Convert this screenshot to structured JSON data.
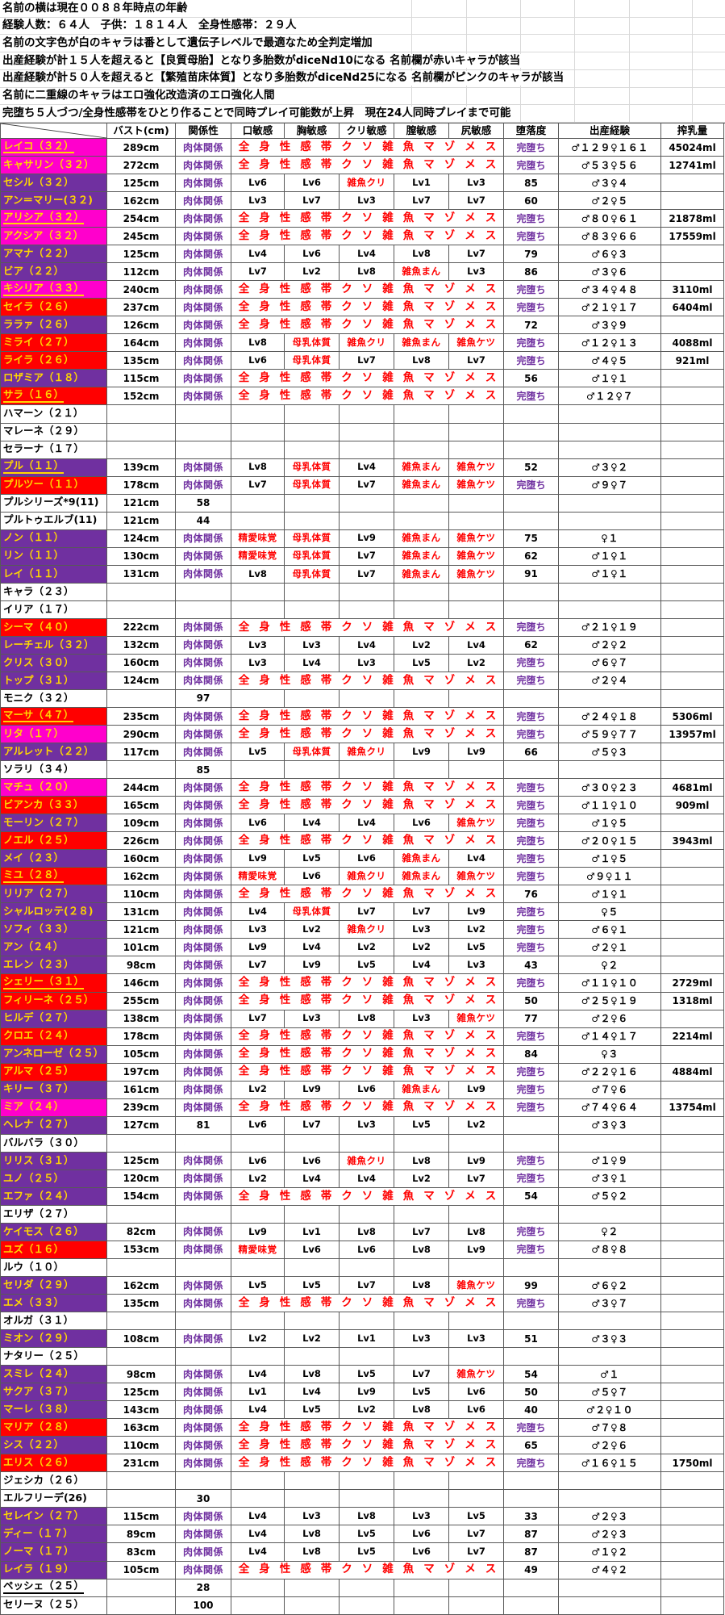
{
  "info_lines": [
    "名前の横は現在００８８年時点の年齢",
    "経験人数：６４人　子供：１８１４人　全身性感帯：２９人",
    "名前の文字色が白のキャラは番として遺伝子レベルで最適なため全判定増加",
    "出産経験が計１５人を超えると【良質母胎】となり多胎数がdiceNd10になる 名前欄が赤いキャラが該当",
    "出産経験が計５０人を超えると【繁殖苗床体質】となり多胎数がdiceNd25になる 名前欄がピンクのキャラが該当",
    "名前に二重線のキャラはエロ強化改造済のエロ強化人間",
    "完堕ち５人づつ/全身性感帯をひとり作ることで同時プレイ可能数が上昇　現在24人同時プレイまで可能"
  ],
  "legend_colors": {
    "magenta_name_bg": "#FF00CC",
    "purple_name_bg": "#7030A0",
    "red_name_bg": "#FF0000",
    "white_name_bg": "#FFFFFF",
    "name_text_yellow": "#FFD700",
    "special_red_text": "#FF0000",
    "relation_purple_text": "#7030A0",
    "grid_dark": "#595959",
    "grid_light": "#D9D9D9"
  },
  "table": {
    "columns": [
      "バスト(cm)",
      "関係性",
      "口敏感",
      "胸敏感",
      "クリ敏感",
      "膣敏感",
      "尻敏感",
      "堕落度",
      "出産経験",
      "搾乳量"
    ],
    "relation_label": "肉体関係",
    "fallen_label": "完堕ち",
    "spread_text": "全身性感帯クソ雑魚マゾメス",
    "rows": [
      [
        "レイコ（３２）",
        "m",
        1,
        "289cm",
        "R",
        "S",
        "F",
        "♂１２９♀１６１",
        "45024ml"
      ],
      [
        "キャサリン（３２）",
        "m",
        0,
        "272cm",
        "R",
        "S",
        "F",
        "♂５３♀５６",
        "12741ml"
      ],
      [
        "セシル（３２）",
        "p",
        0,
        "125cm",
        "R",
        [
          "Lv6",
          "Lv6",
          "雑魚クリ",
          "Lv1",
          "Lv3"
        ],
        "85",
        "♂３♀４",
        ""
      ],
      [
        "アン＝マリー(３２)",
        "p",
        0,
        "162cm",
        "R",
        [
          "Lv3",
          "Lv7",
          "Lv3",
          "Lv7",
          "Lv7"
        ],
        "60",
        "♂２♀５",
        ""
      ],
      [
        "アリシア（３２）",
        "m",
        1,
        "254cm",
        "R",
        "S",
        "F",
        "♂８０♀６１",
        "21878ml"
      ],
      [
        "アクシア（３２）",
        "m",
        0,
        "245cm",
        "R",
        "S",
        "F",
        "♂８３♀６６",
        "17559ml"
      ],
      [
        "アマナ（２２）",
        "p",
        0,
        "125cm",
        "R",
        [
          "Lv4",
          "Lv6",
          "Lv4",
          "Lv8",
          "Lv7"
        ],
        "79",
        "♂６♀３",
        ""
      ],
      [
        "ビア（２２）",
        "p",
        0,
        "112cm",
        "R",
        [
          "Lv7",
          "Lv2",
          "Lv8",
          "雑魚まん",
          "Lv3"
        ],
        "86",
        "♂３♀６",
        ""
      ],
      [
        "キシリア（３３）",
        "m",
        1,
        "240cm",
        "R",
        "S",
        "F",
        "♂３４♀４８",
        "3110ml"
      ],
      [
        "セイラ（２６）",
        "r",
        0,
        "237cm",
        "R",
        "S",
        "F",
        "♂２１♀１７",
        "6404ml"
      ],
      [
        "ララァ（２６）",
        "p",
        0,
        "126cm",
        "R",
        "S",
        "72",
        "♂３♀９",
        ""
      ],
      [
        "ミライ（２７）",
        "r",
        0,
        "164cm",
        "R",
        [
          "Lv8",
          "母乳体質",
          "雑魚クリ",
          "雑魚まん",
          "雑魚ケツ"
        ],
        "F",
        "♂１２♀１３",
        "4088ml"
      ],
      [
        "ライラ（２６）",
        "r",
        0,
        "135cm",
        "R",
        [
          "Lv6",
          "母乳体質",
          "Lv7",
          "Lv8",
          "Lv7"
        ],
        "F",
        "♂４♀５",
        "921ml"
      ],
      [
        "ロザミア（１８）",
        "p",
        0,
        "115cm",
        "R",
        "S",
        "56",
        "♂１♀１",
        ""
      ],
      [
        "サラ（１６）",
        "r",
        1,
        "152cm",
        "R",
        "S",
        "F",
        "♂１２♀７",
        ""
      ],
      [
        "ハマーン（２１）",
        "w",
        0,
        "",
        "",
        null,
        "",
        "",
        ""
      ],
      [
        "マレーネ（２９）",
        "w",
        0,
        "",
        "",
        null,
        "",
        "",
        ""
      ],
      [
        "セラーナ（１７）",
        "w",
        0,
        "",
        "",
        null,
        "",
        "",
        ""
      ],
      [
        "プル（１１）",
        "p",
        1,
        "139cm",
        "R",
        [
          "Lv8",
          "母乳体質",
          "Lv4",
          "雑魚まん",
          "雑魚ケツ"
        ],
        "52",
        "♂３♀２",
        ""
      ],
      [
        "プルツー（１１）",
        "r",
        0,
        "178cm",
        "R",
        [
          "Lv7",
          "母乳体質",
          "Lv7",
          "雑魚まん",
          "雑魚ケツ"
        ],
        "F",
        "♂９♀７",
        ""
      ],
      [
        "プルシリーズ*9(11)",
        "w",
        0,
        "121cm",
        "58",
        null,
        "",
        "",
        ""
      ],
      [
        "プルトゥエルブ(11)",
        "w",
        0,
        "121cm",
        "44",
        null,
        "",
        "",
        ""
      ],
      [
        "ノン（１１）",
        "p",
        0,
        "124cm",
        "R",
        [
          "精愛味覚",
          "母乳体質",
          "Lv9",
          "雑魚まん",
          "雑魚ケツ"
        ],
        "75",
        "♀１",
        ""
      ],
      [
        "リン（１１）",
        "p",
        0,
        "130cm",
        "R",
        [
          "精愛味覚",
          "母乳体質",
          "Lv7",
          "雑魚まん",
          "雑魚ケツ"
        ],
        "62",
        "♂１♀１",
        ""
      ],
      [
        "レイ（１１）",
        "p",
        0,
        "131cm",
        "R",
        [
          "Lv8",
          "母乳体質",
          "Lv7",
          "雑魚まん",
          "雑魚ケツ"
        ],
        "91",
        "♂１♀１",
        ""
      ],
      [
        "キャラ（２３）",
        "w",
        0,
        "",
        "",
        null,
        "",
        "",
        ""
      ],
      [
        "イリア（１７）",
        "w",
        0,
        "",
        "",
        null,
        "",
        "",
        ""
      ],
      [
        "シーマ（４０）",
        "r",
        0,
        "222cm",
        "R",
        "S",
        "F",
        "♂２１♀１９",
        ""
      ],
      [
        "レーチェル（３２）",
        "p",
        0,
        "132cm",
        "R",
        [
          "Lv3",
          "Lv3",
          "Lv4",
          "Lv2",
          "Lv4"
        ],
        "62",
        "♂２♀２",
        ""
      ],
      [
        "クリス（３０）",
        "p",
        0,
        "160cm",
        "R",
        [
          "Lv3",
          "Lv4",
          "Lv3",
          "Lv5",
          "Lv2"
        ],
        "F",
        "♂６♀７",
        ""
      ],
      [
        "トップ（３１）",
        "p",
        0,
        "124cm",
        "R",
        "S",
        "F",
        "♂２♀４",
        ""
      ],
      [
        "モニク（３２）",
        "w",
        0,
        "",
        "97",
        null,
        "",
        "",
        ""
      ],
      [
        "マーサ（４７）",
        "r",
        1,
        "235cm",
        "R",
        "S",
        "F",
        "♂２４♀１８",
        "5306ml"
      ],
      [
        "リタ（１７）",
        "m",
        0,
        "290cm",
        "R",
        "S",
        "F",
        "♂５９♀７７",
        "13957ml"
      ],
      [
        "アルレット（２２）",
        "p",
        0,
        "117cm",
        "R",
        [
          "Lv5",
          "母乳体質",
          "雑魚クリ",
          "Lv9",
          "Lv9"
        ],
        "66",
        "♂５♀３",
        ""
      ],
      [
        "ソラリ（３４）",
        "w",
        0,
        "",
        "85",
        null,
        "",
        "",
        ""
      ],
      [
        "マチュ（２０）",
        "m",
        0,
        "244cm",
        "R",
        "S",
        "F",
        "♂３０♀２３",
        "4681ml"
      ],
      [
        "ビアンカ（３３）",
        "r",
        0,
        "165cm",
        "R",
        "S",
        "F",
        "♂１１♀１０",
        "909ml"
      ],
      [
        "モーリン（２７）",
        "p",
        0,
        "109cm",
        "R",
        [
          "Lv6",
          "Lv4",
          "Lv4",
          "Lv6",
          "雑魚ケツ"
        ],
        "F",
        "♂１♀５",
        ""
      ],
      [
        "ノエル（２５）",
        "r",
        0,
        "226cm",
        "R",
        "S",
        "F",
        "♂２０♀１５",
        "3943ml"
      ],
      [
        "メイ（２３）",
        "p",
        0,
        "160cm",
        "R",
        [
          "Lv9",
          "Lv5",
          "Lv6",
          "雑魚まん",
          "Lv4"
        ],
        "F",
        "♂１♀５",
        ""
      ],
      [
        "ミユ（２８）",
        "r",
        1,
        "162cm",
        "R",
        [
          "精愛味覚",
          "Lv6",
          "雑魚クリ",
          "雑魚まん",
          "雑魚ケツ"
        ],
        "F",
        "♂９♀１１",
        ""
      ],
      [
        "リリア（２７）",
        "p",
        0,
        "110cm",
        "R",
        "S",
        "76",
        "♂１♀１",
        ""
      ],
      [
        "シャルロッテ(２８)",
        "p",
        0,
        "131cm",
        "R",
        [
          "Lv4",
          "母乳体質",
          "Lv7",
          "Lv7",
          "Lv9"
        ],
        "F",
        "♀５",
        ""
      ],
      [
        "ソフィ（３３）",
        "p",
        0,
        "121cm",
        "R",
        [
          "Lv3",
          "Lv2",
          "雑魚クリ",
          "Lv3",
          "Lv2"
        ],
        "F",
        "♂６♀１",
        ""
      ],
      [
        "アン（２４）",
        "p",
        0,
        "101cm",
        "R",
        [
          "Lv9",
          "Lv4",
          "Lv2",
          "Lv2",
          "Lv5"
        ],
        "F",
        "♂２♀１",
        ""
      ],
      [
        "エレン（２３）",
        "p",
        0,
        "98cm",
        "R",
        [
          "Lv7",
          "Lv9",
          "Lv5",
          "Lv4",
          "Lv3"
        ],
        "43",
        "♀２",
        ""
      ],
      [
        "シェリー（３１）",
        "r",
        1,
        "146cm",
        "R",
        "S",
        "F",
        "♂１１♀１０",
        "2729ml"
      ],
      [
        "フィリーネ（２５）",
        "r",
        0,
        "255cm",
        "R",
        "S",
        "50",
        "♂２５♀１９",
        "1318ml"
      ],
      [
        "ヒルデ（２７）",
        "p",
        0,
        "138cm",
        "R",
        [
          "Lv7",
          "Lv3",
          "Lv8",
          "Lv3",
          "雑魚ケツ"
        ],
        "77",
        "♂２♀６",
        ""
      ],
      [
        "クロエ（２４）",
        "r",
        0,
        "178cm",
        "R",
        "S",
        "F",
        "♂１４♀１７",
        "2214ml"
      ],
      [
        "アンネローゼ（２５）",
        "p",
        0,
        "105cm",
        "R",
        "S",
        "84",
        "♀３",
        ""
      ],
      [
        "アルマ（２５）",
        "r",
        0,
        "197cm",
        "R",
        "S",
        "F",
        "♂２２♀１６",
        "4884ml"
      ],
      [
        "キリー（３７）",
        "p",
        0,
        "161cm",
        "R",
        [
          "Lv2",
          "Lv9",
          "Lv6",
          "雑魚まん",
          "Lv9"
        ],
        "F",
        "♂７♀６",
        ""
      ],
      [
        "ミア（２４）",
        "m",
        0,
        "239cm",
        "R",
        "S",
        "F",
        "♂７４♀６４",
        "13754ml"
      ],
      [
        "ヘレナ（２７）",
        "p",
        0,
        "127cm",
        "81",
        [
          "Lv6",
          "Lv7",
          "Lv3",
          "Lv5",
          "Lv2"
        ],
        "",
        "♂３♀３",
        ""
      ],
      [
        "バルバラ（３０）",
        "w",
        0,
        "",
        "",
        null,
        "",
        "",
        ""
      ],
      [
        "リリス（３１）",
        "p",
        0,
        "125cm",
        "R",
        [
          "Lv6",
          "Lv6",
          "雑魚クリ",
          "Lv8",
          "Lv9"
        ],
        "F",
        "♂１♀９",
        ""
      ],
      [
        "ユノ（２５）",
        "p",
        0,
        "120cm",
        "R",
        [
          "Lv2",
          "Lv4",
          "Lv4",
          "Lv2",
          "Lv7"
        ],
        "F",
        "♂３♀１",
        ""
      ],
      [
        "エファ（２４）",
        "p",
        0,
        "154cm",
        "R",
        "S",
        "54",
        "♂５♀２",
        ""
      ],
      [
        "エリザ（２７）",
        "w",
        0,
        "",
        "",
        null,
        "",
        "",
        ""
      ],
      [
        "ケイモス（２６）",
        "p",
        0,
        "82cm",
        "R",
        [
          "Lv9",
          "Lv1",
          "Lv8",
          "Lv7",
          "Lv8"
        ],
        "F",
        "♀２",
        ""
      ],
      [
        "ユズ（１６）",
        "r",
        0,
        "153cm",
        "R",
        [
          "精愛味覚",
          "Lv6",
          "Lv6",
          "Lv8",
          "Lv9"
        ],
        "F",
        "♂８♀８",
        ""
      ],
      [
        "ルウ（１０）",
        "w",
        0,
        "",
        "",
        null,
        "",
        "",
        ""
      ],
      [
        "セリダ（２９）",
        "p",
        0,
        "162cm",
        "R",
        [
          "Lv5",
          "Lv5",
          "Lv7",
          "Lv8",
          "雑魚ケツ"
        ],
        "99",
        "♂６♀２",
        ""
      ],
      [
        "エメ（３３）",
        "p",
        0,
        "135cm",
        "R",
        "S",
        "F",
        "♂３♀７",
        ""
      ],
      [
        "オルガ（３１）",
        "w",
        0,
        "",
        "",
        null,
        "",
        "",
        ""
      ],
      [
        "ミオン（２９）",
        "p",
        0,
        "108cm",
        "R",
        [
          "Lv2",
          "Lv2",
          "Lv1",
          "Lv3",
          "Lv3"
        ],
        "51",
        "♂３♀３",
        ""
      ],
      [
        "ナタリー（２５）",
        "w",
        0,
        "",
        "",
        null,
        "",
        "",
        ""
      ],
      [
        "スミレ（２４）",
        "p",
        0,
        "98cm",
        "R",
        [
          "Lv4",
          "Lv8",
          "Lv5",
          "Lv7",
          "雑魚ケツ"
        ],
        "54",
        "♂１",
        ""
      ],
      [
        "サクア（３７）",
        "p",
        0,
        "125cm",
        "R",
        [
          "Lv1",
          "Lv4",
          "Lv9",
          "Lv5",
          "Lv6"
        ],
        "50",
        "♂５♀７",
        ""
      ],
      [
        "マーレ（３８）",
        "p",
        0,
        "143cm",
        "R",
        [
          "Lv4",
          "Lv5",
          "Lv2",
          "Lv8",
          "Lv6"
        ],
        "40",
        "♂２♀１０",
        ""
      ],
      [
        "マリア（２８）",
        "r",
        0,
        "163cm",
        "R",
        "S",
        "F",
        "♂７♀８",
        ""
      ],
      [
        "シス（２２）",
        "p",
        0,
        "110cm",
        "R",
        "S",
        "65",
        "♂２♀６",
        ""
      ],
      [
        "エリス（２６）",
        "r",
        0,
        "231cm",
        "R",
        "S",
        "F",
        "♂１６♀１５",
        "1750ml"
      ],
      [
        "ジェシカ（２６）",
        "w",
        0,
        "",
        "",
        null,
        "",
        "",
        ""
      ],
      [
        "エルフリーデ(26)",
        "w",
        0,
        "",
        "30",
        null,
        "",
        "",
        ""
      ],
      [
        "セレイン（２７）",
        "p",
        0,
        "115cm",
        "R",
        [
          "Lv4",
          "Lv3",
          "Lv8",
          "Lv3",
          "Lv5"
        ],
        "33",
        "♂２♀３",
        ""
      ],
      [
        "ディー（１７）",
        "p",
        0,
        "89cm",
        "R",
        [
          "Lv4",
          "Lv8",
          "Lv5",
          "Lv6",
          "Lv7"
        ],
        "87",
        "♂２♀３",
        ""
      ],
      [
        "ノーマ（１７）",
        "p",
        0,
        "83cm",
        "R",
        [
          "Lv4",
          "Lv8",
          "Lv5",
          "Lv6",
          "Lv7"
        ],
        "87",
        "♂１♀２",
        ""
      ],
      [
        "レイラ（１９）",
        "p",
        0,
        "105cm",
        "R",
        "S",
        "49",
        "♂４♀２",
        ""
      ],
      [
        "ペッシェ（２５）",
        "w",
        1,
        "",
        "28",
        null,
        "",
        "",
        ""
      ],
      [
        "セリーヌ（２５）",
        "w",
        0,
        "",
        "100",
        null,
        "",
        "",
        ""
      ]
    ]
  }
}
